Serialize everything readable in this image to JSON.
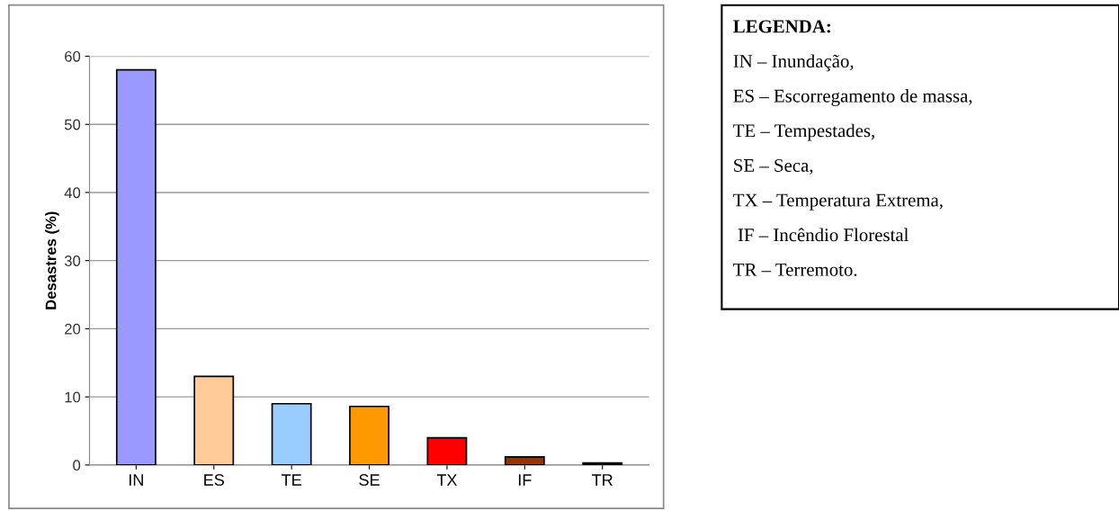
{
  "chart_data": {
    "type": "bar",
    "ylabel": "Desastres (%)",
    "categories": [
      "IN",
      "ES",
      "TE",
      "SE",
      "TX",
      "IF",
      "TR"
    ],
    "values": [
      58,
      13,
      9,
      8.6,
      4,
      1.2,
      0.3
    ],
    "colors": [
      "#9999ff",
      "#ffcc99",
      "#99ccff",
      "#ff9900",
      "#ff0000",
      "#993300",
      "#222222"
    ],
    "ylim": [
      0,
      60
    ],
    "yticks": [
      0,
      10,
      20,
      30,
      40,
      50,
      60
    ],
    "grid": "y",
    "annotations": [
      "LEGENDA:",
      "IN – Inundação,",
      "ES – Escorregamento de massa,",
      "TE – Tempestades,",
      "SE – Seca,",
      "TX – Temperatura Extrema,",
      " IF – Incêndio Florestal",
      "TR – Terremoto."
    ]
  }
}
